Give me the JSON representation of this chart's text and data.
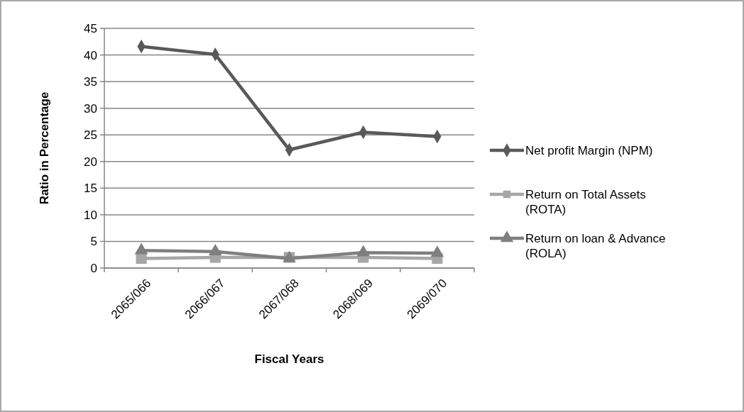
{
  "chart_data": {
    "type": "line",
    "xlabel": "Fiscal Years",
    "ylabel": "Ratio in Percentage",
    "categories": [
      "2065/066",
      "2066/067",
      "2067/068",
      "2068/069",
      "2069/070"
    ],
    "series": [
      {
        "name": "Net profit Margin (NPM)",
        "color": "#595959",
        "marker": "diamond",
        "values": [
          41.6,
          40.1,
          22.2,
          25.5,
          24.7
        ]
      },
      {
        "name": "Return on Total Assets (ROTA)",
        "color": "#a6a6a6",
        "marker": "square",
        "values": [
          1.8,
          2.0,
          2.0,
          2.0,
          1.8
        ]
      },
      {
        "name": "Return on loan & Advance (ROLA)",
        "color": "#7f7f7f",
        "marker": "triangle",
        "values": [
          3.3,
          3.1,
          1.8,
          2.9,
          2.8
        ]
      }
    ],
    "ylim": [
      0,
      45
    ],
    "yticks": [
      0,
      5,
      10,
      15,
      20,
      25,
      30,
      35,
      40,
      45
    ],
    "grid": "y",
    "legend": "right",
    "line_style": "solid"
  }
}
